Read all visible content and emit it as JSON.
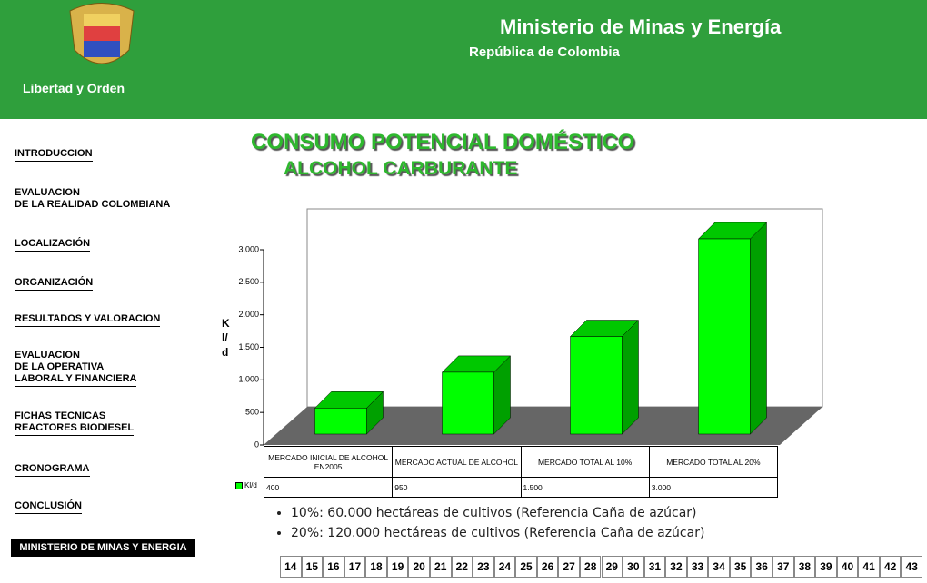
{
  "header": {
    "title": "Ministerio de Minas y Energía",
    "subtitle": "República de Colombia",
    "motto": "Libertad y Orden"
  },
  "nav": [
    [
      "INTRODUCCION"
    ],
    [
      "EVALUACION",
      "DE LA REALIDAD COLOMBIANA"
    ],
    [
      "LOCALIZACIÓN"
    ],
    [
      "ORGANIZACIÓN"
    ],
    [
      "RESULTADOS Y VALORACION"
    ],
    [
      "EVALUACION",
      "DE LA OPERATIVA",
      "LABORAL Y FINANCIERA"
    ],
    [
      "FICHAS TECNICAS",
      "REACTORES BIODIESEL"
    ],
    [
      "CRONOGRAMA"
    ],
    [
      "CONCLUSIÓN"
    ]
  ],
  "nav_footer": "MINISTERIO DE MINAS Y ENERGIA",
  "slide": {
    "title": "CONSUMO POTENCIAL DOMÉSTICO",
    "subtitle": "ALCOHOL CARBURANTE"
  },
  "chart_data": {
    "type": "bar",
    "ylabel": "Kl/d",
    "categories": [
      "MERCADO INICIAL DE ALCOHOL EN2005",
      "MERCADO ACTUAL DE ALCOHOL",
      "MERCADO TOTAL AL 10%",
      "MERCADO TOTAL AL 20%"
    ],
    "series": [
      {
        "name": "Kl/d",
        "color": "#00ff00",
        "values": [
          400,
          950,
          1500,
          3000
        ],
        "value_labels": [
          "400",
          "950",
          "1.500",
          "3.000"
        ]
      }
    ],
    "ylim": [
      0,
      3000
    ],
    "yticks": [
      0,
      500,
      {
        "value": 1000,
        "label": "1.000"
      },
      {
        "value": 1500,
        "label": "1.500"
      },
      {
        "value": 2000,
        "label": "2.000"
      },
      {
        "value": 2500,
        "label": "2.500"
      },
      {
        "value": 3000,
        "label": "3.000"
      }
    ]
  },
  "bullets": [
    "10%: 60.000 hectáreas de cultivos (Referencia Caña de azúcar)",
    "20%: 120.000 hectáreas de cultivos (Referencia Caña de azúcar)"
  ],
  "pages": [
    14,
    15,
    16,
    17,
    18,
    19,
    20,
    21,
    22,
    23,
    24,
    25,
    26,
    27,
    28,
    29,
    30,
    31,
    32,
    33,
    34,
    35,
    36,
    37,
    38,
    39,
    40,
    41,
    42,
    43
  ]
}
